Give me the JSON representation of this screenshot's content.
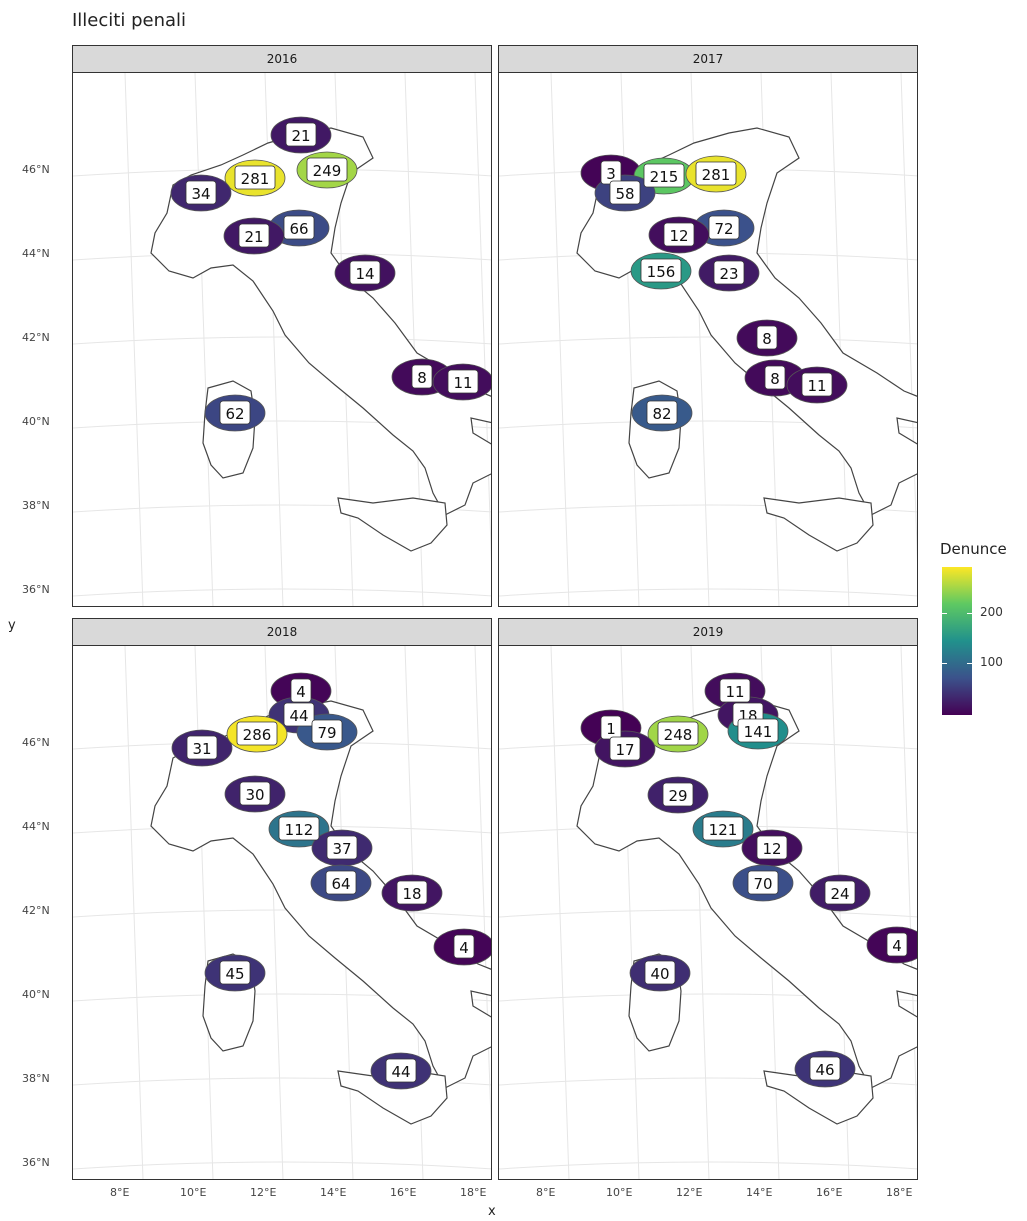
{
  "title": "Illeciti penali",
  "axes": {
    "x_title": "x",
    "y_title": "y",
    "x_ticks": [
      "8°E",
      "10°E",
      "12°E",
      "14°E",
      "16°E",
      "18°E"
    ],
    "y_ticks": [
      "46°N",
      "44°N",
      "42°N",
      "40°N",
      "38°N",
      "36°N"
    ]
  },
  "legend": {
    "title": "Denunce",
    "labels": [
      "200",
      "100"
    ],
    "colors": [
      "#fde725",
      "#5ec962",
      "#21918c",
      "#3b528b",
      "#440154"
    ]
  },
  "chart_data": {
    "type": "choropleth-map",
    "facet_by": "year",
    "panels": [
      {
        "year": "2016",
        "regions": [
          {
            "label": "21",
            "value": 21
          },
          {
            "label": "281",
            "value": 281
          },
          {
            "label": "249",
            "value": 249
          },
          {
            "label": "34",
            "value": 34
          },
          {
            "label": "66",
            "value": 66
          },
          {
            "label": "21",
            "value": 21
          },
          {
            "label": "14",
            "value": 14
          },
          {
            "label": "8",
            "value": 8
          },
          {
            "label": "11",
            "value": 11
          },
          {
            "label": "62",
            "value": 62
          }
        ]
      },
      {
        "year": "2017",
        "regions": [
          {
            "label": "3",
            "value": 3
          },
          {
            "label": "215",
            "value": 215
          },
          {
            "label": "281",
            "value": 281
          },
          {
            "label": "58",
            "value": 58
          },
          {
            "label": "72",
            "value": 72
          },
          {
            "label": "12",
            "value": 12
          },
          {
            "label": "156",
            "value": 156
          },
          {
            "label": "23",
            "value": 23
          },
          {
            "label": "8",
            "value": 8
          },
          {
            "label": "8",
            "value": 8
          },
          {
            "label": "11",
            "value": 11
          },
          {
            "label": "82",
            "value": 82
          }
        ]
      },
      {
        "year": "2018",
        "regions": [
          {
            "label": "4",
            "value": 4
          },
          {
            "label": "44",
            "value": 44
          },
          {
            "label": "79",
            "value": 79
          },
          {
            "label": "31",
            "value": 31
          },
          {
            "label": "286",
            "value": 286
          },
          {
            "label": "30",
            "value": 30
          },
          {
            "label": "112",
            "value": 112
          },
          {
            "label": "37",
            "value": 37
          },
          {
            "label": "64",
            "value": 64
          },
          {
            "label": "18",
            "value": 18
          },
          {
            "label": "4",
            "value": 4
          },
          {
            "label": "45",
            "value": 45
          },
          {
            "label": "44",
            "value": 44
          }
        ]
      },
      {
        "year": "2019",
        "regions": [
          {
            "label": "11",
            "value": 11
          },
          {
            "label": "18",
            "value": 18
          },
          {
            "label": "1",
            "value": 1
          },
          {
            "label": "248",
            "value": 248
          },
          {
            "label": "141",
            "value": 141
          },
          {
            "label": "17",
            "value": 17
          },
          {
            "label": "29",
            "value": 29
          },
          {
            "label": "121",
            "value": 121
          },
          {
            "label": "12",
            "value": 12
          },
          {
            "label": "70",
            "value": 70
          },
          {
            "label": "24",
            "value": 24
          },
          {
            "label": "4",
            "value": 4
          },
          {
            "label": "40",
            "value": 40
          },
          {
            "label": "46",
            "value": 46
          }
        ]
      }
    ]
  }
}
